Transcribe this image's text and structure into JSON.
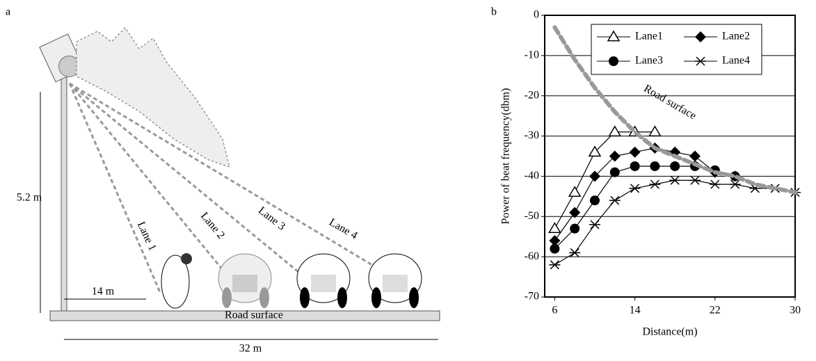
{
  "panel_a": {
    "label": "a",
    "height": "5.2 m",
    "offset": "14 m",
    "length": "32 m",
    "lanes": [
      "Lane 1",
      "Lane 2",
      "Lane 3",
      "Lane 4"
    ],
    "road": "Road surface"
  },
  "chart_data": {
    "type": "line",
    "panel_label": "b",
    "x_label": "Distance(m)",
    "y_label": "Power of beat frequency(dbm)",
    "x": [
      6,
      8,
      10,
      12,
      14,
      16,
      18,
      20,
      22,
      24,
      26,
      28,
      30
    ],
    "xlim": [
      5,
      30
    ],
    "xticks": [
      6,
      14,
      22,
      30
    ],
    "ylim": [
      -70,
      0
    ],
    "yticks": [
      0,
      -10,
      -20,
      -30,
      -40,
      -50,
      -60,
      -70
    ],
    "grid": true,
    "legend": "top-right",
    "series": [
      {
        "name": "Lane1",
        "color": "#000",
        "marker": "triangle",
        "values": [
          -53,
          -44,
          -34,
          -29,
          -29,
          -29,
          null,
          null,
          null,
          null,
          null,
          null,
          null
        ]
      },
      {
        "name": "Lane2",
        "color": "#000",
        "marker": "diamond",
        "values": [
          -56,
          -49,
          -40,
          -35,
          -34,
          -33,
          -34,
          -35,
          -39,
          -40,
          null,
          null,
          null
        ]
      },
      {
        "name": "Lane3",
        "color": "#000",
        "marker": "circle",
        "values": [
          -58,
          -53,
          -46,
          -39,
          -37.5,
          -37.5,
          -37.5,
          -37.5,
          -38.5,
          -40,
          null,
          null,
          null
        ]
      },
      {
        "name": "Lane4",
        "color": "#000",
        "marker": "asterisk",
        "values": [
          -62,
          -59,
          -52,
          -46,
          -43,
          -42,
          -41,
          -41,
          -42,
          -42,
          -43,
          -43,
          -44
        ]
      },
      {
        "name": "Road surface",
        "color": "#999",
        "marker": "dashed",
        "values": [
          -3,
          -11,
          -18,
          -24,
          -29,
          -33,
          -35,
          -37,
          -39,
          -40,
          -42,
          -43,
          -44
        ]
      }
    ]
  }
}
